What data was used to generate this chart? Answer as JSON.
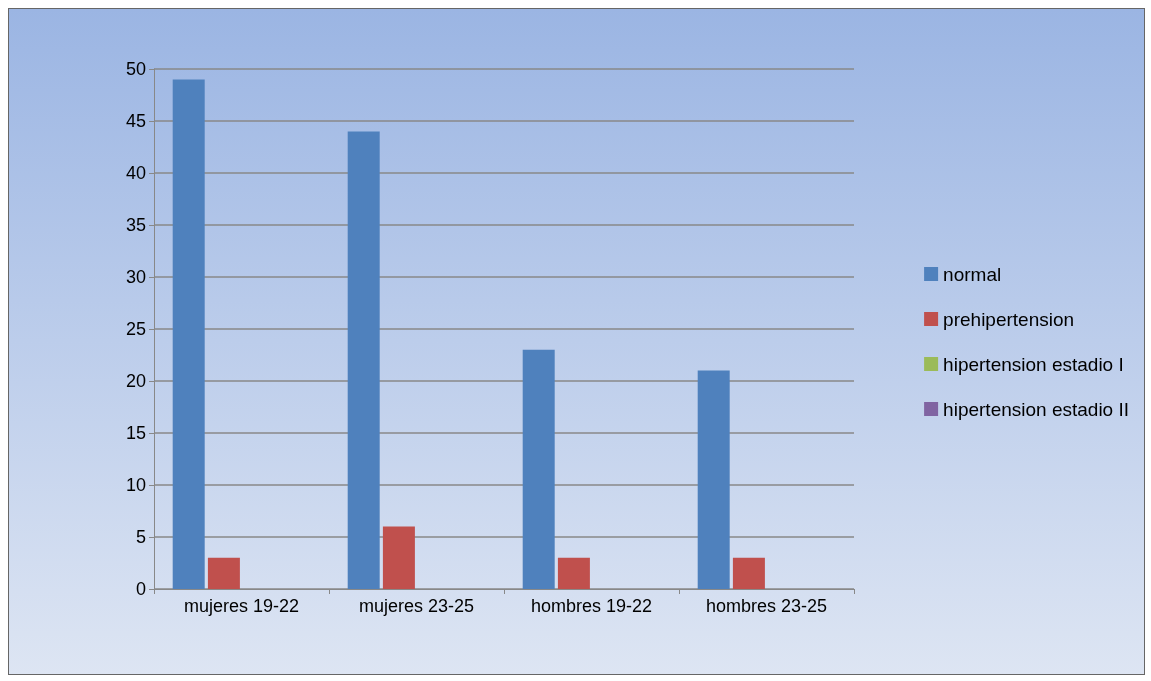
{
  "chart_data": {
    "type": "bar",
    "categories": [
      "mujeres 19-22",
      "mujeres 23-25",
      "hombres 19-22",
      "hombres 23-25"
    ],
    "series": [
      {
        "name": "normal",
        "color": "#4f81bd",
        "values": [
          49,
          44,
          23,
          21
        ]
      },
      {
        "name": "prehipertension",
        "color": "#c0504d",
        "values": [
          3,
          6,
          3,
          3
        ]
      },
      {
        "name": "hipertension estadio I",
        "color": "#9bbb59",
        "values": [
          0,
          0,
          0,
          0
        ]
      },
      {
        "name": "hipertension estadio II",
        "color": "#8064a2",
        "values": [
          0,
          0,
          0,
          0
        ]
      }
    ],
    "ylim": [
      0,
      50
    ],
    "yticks": [
      0,
      5,
      10,
      15,
      20,
      25,
      30,
      35,
      40,
      45,
      50
    ],
    "grid": "y",
    "legend": "right"
  }
}
